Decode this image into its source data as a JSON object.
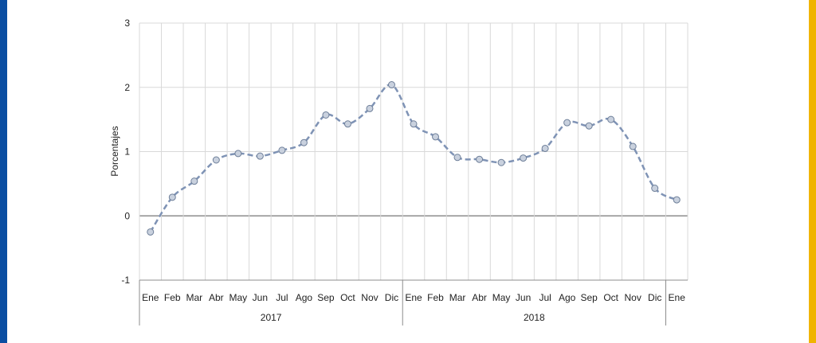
{
  "frame": {
    "left_bar_color": "#0b4ea2",
    "right_bar_color": "#f0b400"
  },
  "chart_data": {
    "type": "line",
    "ylabel": "Porcentajes",
    "xlabel": "",
    "ylim": [
      -1,
      3
    ],
    "yticks": [
      "-1",
      "0",
      "1",
      "2",
      "3"
    ],
    "grid": true,
    "categories": [
      "Ene",
      "Feb",
      "Mar",
      "Abr",
      "May",
      "Jun",
      "Jul",
      "Ago",
      "Sep",
      "Oct",
      "Nov",
      "Dic",
      "Ene",
      "Feb",
      "Mar",
      "Abr",
      "May",
      "Jun",
      "Jul",
      "Ago",
      "Sep",
      "Oct",
      "Nov",
      "Dic",
      "Ene"
    ],
    "groups": [
      {
        "label": "2017",
        "start": 0,
        "end": 11
      },
      {
        "label": "2018",
        "start": 12,
        "end": 23
      }
    ],
    "series": [
      {
        "values": [
          -0.25,
          0.29,
          0.54,
          0.87,
          0.97,
          0.93,
          1.02,
          1.14,
          1.57,
          1.43,
          1.67,
          2.04,
          1.43,
          1.23,
          0.91,
          0.88,
          0.83,
          0.9,
          1.05,
          1.45,
          1.4,
          1.5,
          1.08,
          0.43,
          0.25
        ],
        "color": "#7f93b5",
        "marker_fill": "#c9d1de",
        "marker_stroke": "#6e7f99"
      }
    ]
  }
}
